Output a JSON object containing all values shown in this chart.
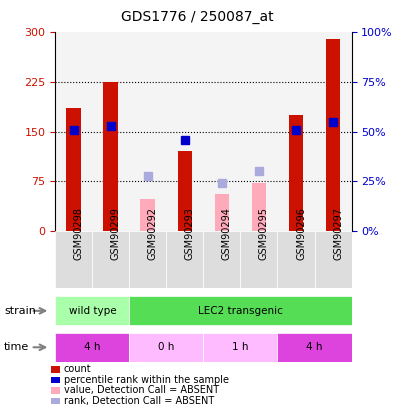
{
  "title": "GDS1776 / 250087_at",
  "samples": [
    "GSM90298",
    "GSM90299",
    "GSM90292",
    "GSM90293",
    "GSM90294",
    "GSM90295",
    "GSM90296",
    "GSM90297"
  ],
  "count_values": [
    185,
    225,
    null,
    120,
    null,
    null,
    175,
    290
  ],
  "rank_values": [
    152,
    158,
    null,
    138,
    null,
    null,
    152,
    165
  ],
  "absent_count_values": [
    null,
    null,
    48,
    null,
    55,
    73,
    null,
    null
  ],
  "absent_rank_values": [
    null,
    null,
    83,
    null,
    73,
    90,
    null,
    null
  ],
  "ylim": [
    0,
    300
  ],
  "yticks": [
    0,
    75,
    150,
    225,
    300
  ],
  "ytick_labels_left": [
    "0",
    "75",
    "150",
    "225",
    "300"
  ],
  "ytick_labels_right": [
    "0%",
    "25%",
    "50%",
    "75%",
    "100%"
  ],
  "bar_color_present": "#cc1100",
  "bar_color_absent": "#ffaabb",
  "rank_color_present": "#0000cc",
  "rank_color_absent": "#aaaadd",
  "strain_groups": [
    {
      "label": "wild type",
      "start": 0,
      "end": 2,
      "color": "#aaffaa"
    },
    {
      "label": "LEC2 transgenic",
      "start": 2,
      "end": 8,
      "color": "#55dd55"
    }
  ],
  "time_groups": [
    {
      "label": "4 h",
      "start": 0,
      "end": 2,
      "color": "#dd44dd"
    },
    {
      "label": "0 h",
      "start": 2,
      "end": 4,
      "color": "#ffbbff"
    },
    {
      "label": "1 h",
      "start": 4,
      "end": 6,
      "color": "#ffbbff"
    },
    {
      "label": "4 h",
      "start": 6,
      "end": 8,
      "color": "#dd44dd"
    }
  ],
  "legend_items": [
    {
      "label": "count",
      "color": "#cc1100"
    },
    {
      "label": "percentile rank within the sample",
      "color": "#0000cc"
    },
    {
      "label": "value, Detection Call = ABSENT",
      "color": "#ffaabb"
    },
    {
      "label": "rank, Detection Call = ABSENT",
      "color": "#aaaadd"
    }
  ],
  "bar_width": 0.4,
  "rank_marker_size": 6,
  "fig_bg": "#ffffff",
  "sample_col_bg": "#dddddd"
}
